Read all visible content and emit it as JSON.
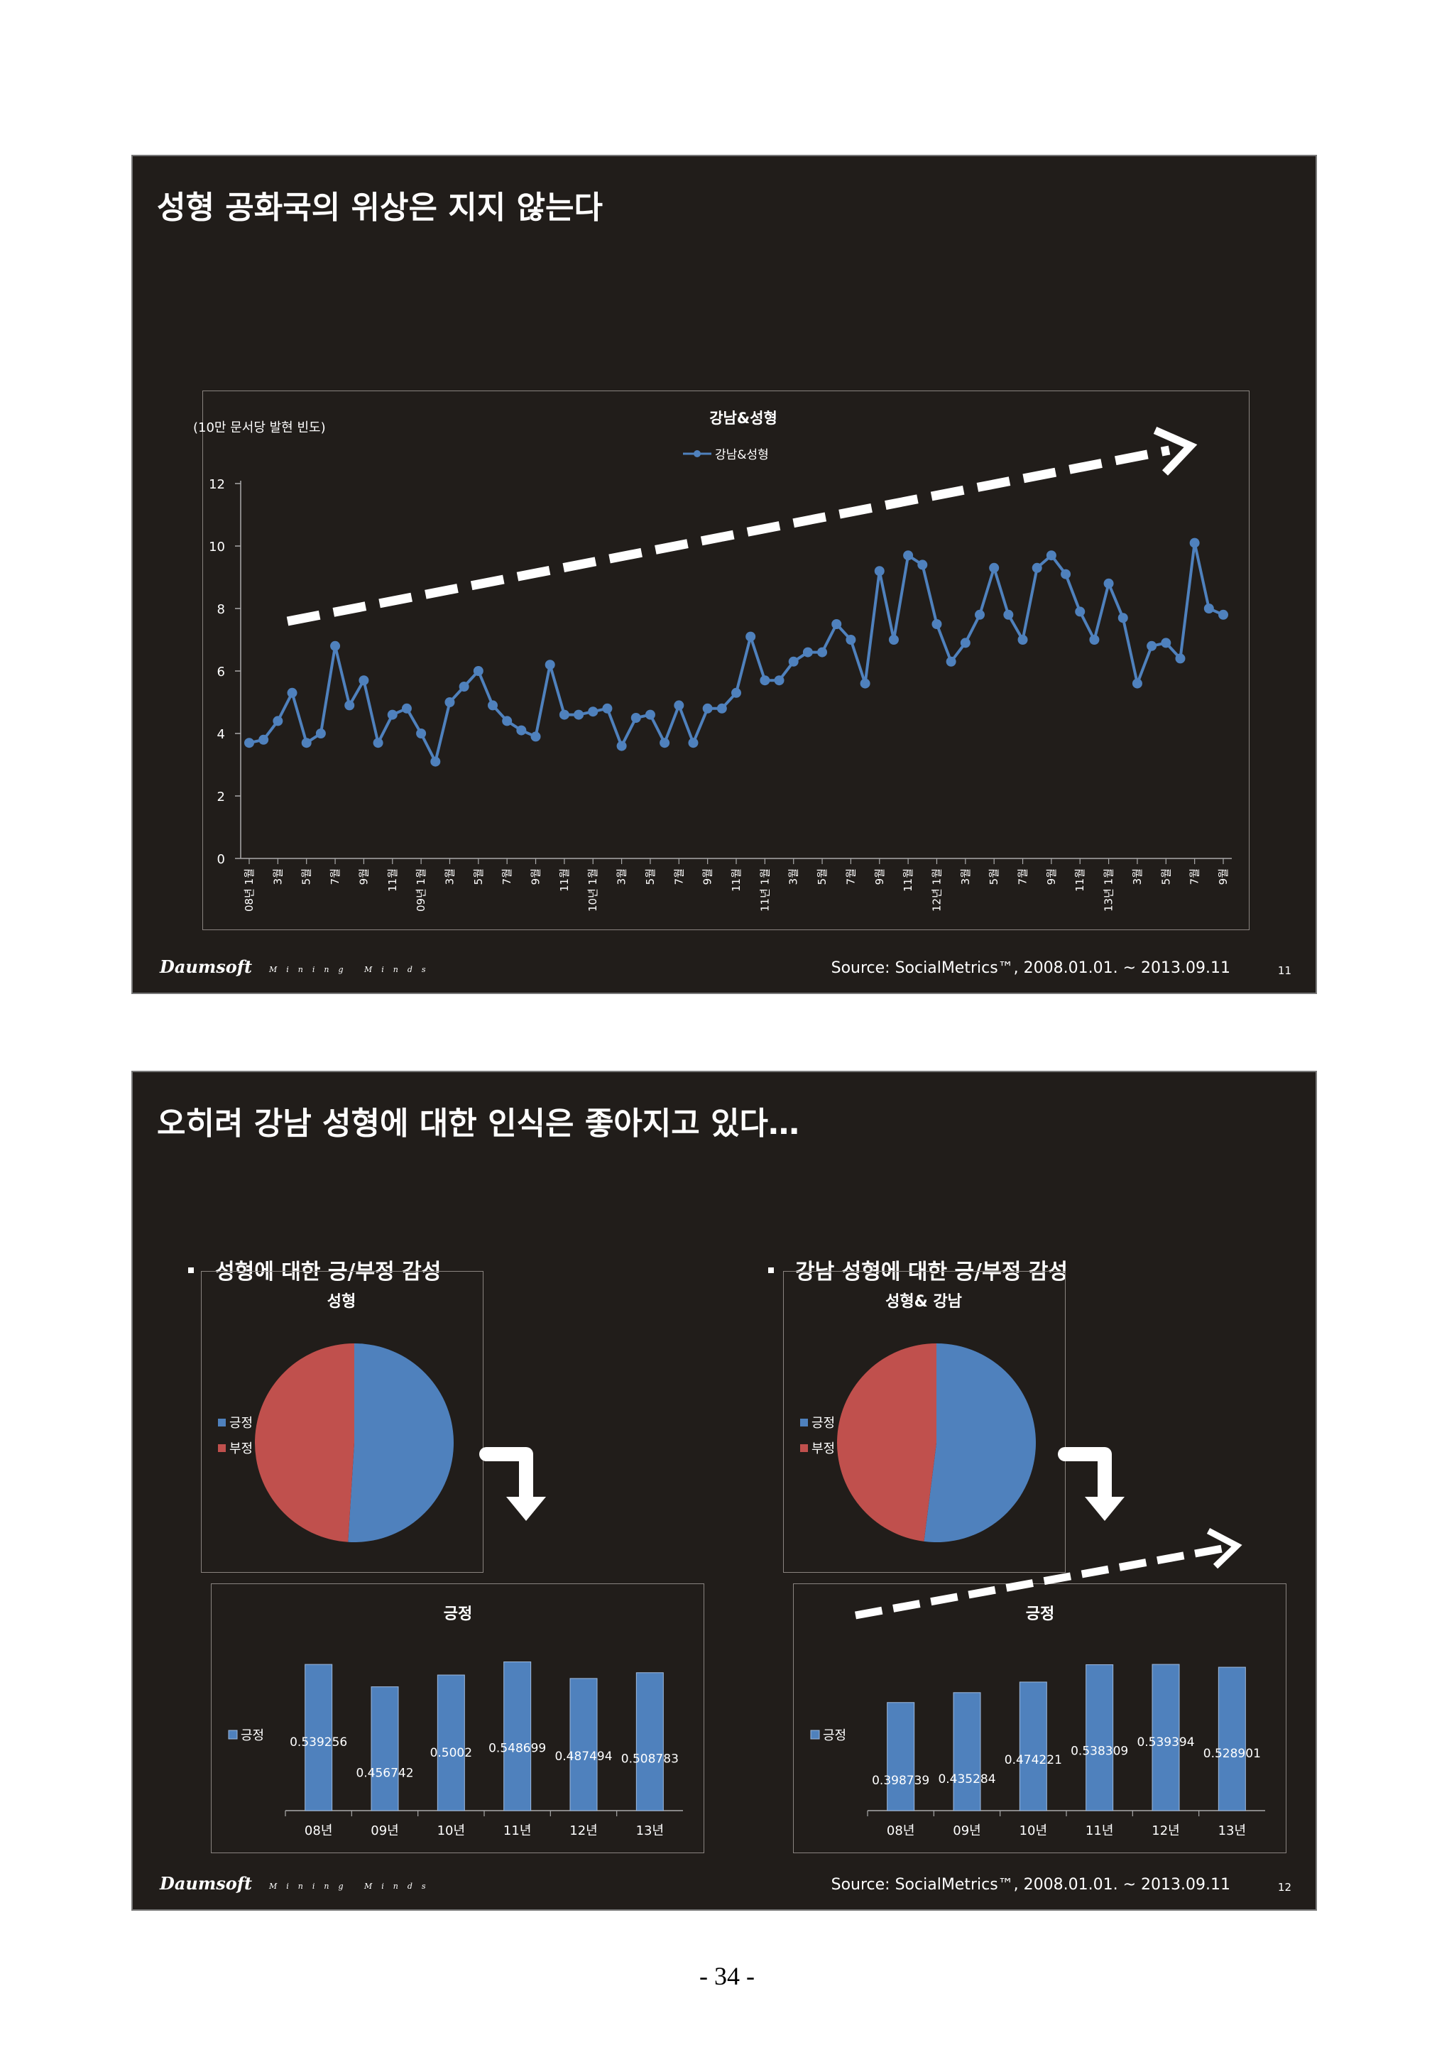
{
  "slides": [
    {
      "title": "성형 공화국의 위상은 지지 않는다",
      "logo": "Daumsoft",
      "tagline": "Mining Minds",
      "source": "Source: SocialMetrics™, 2008.01.01. ~ 2013.09.11",
      "page": "11"
    },
    {
      "title": "오히려 강남 성형에 대한 인식은 좋아지고 있다…",
      "logo": "Daumsoft",
      "tagline": "Mining Minds",
      "source": "Source: SocialMetrics™, 2008.01.01. ~ 2013.09.11",
      "page": "12",
      "bullet_left": "성형에 대한 긍/부정 감성",
      "bullet_right": "강남 성형에 대한 긍/부정 감성"
    }
  ],
  "colors": {
    "slide_bg": "#211d1a",
    "blue": "#4f81bd",
    "red": "#c0504d",
    "text": "#ffffff"
  },
  "page_number": "- 34 -",
  "chart_data": [
    {
      "type": "line",
      "title": "강남&성형",
      "ylabel": "(10만 문서당 발현 빈도)",
      "legend": "top-center",
      "ylim": [
        0,
        12
      ],
      "yticks": [
        0,
        2,
        4,
        6,
        8,
        10,
        12
      ],
      "x_tick_labels": [
        "08년 1월",
        "3월",
        "5월",
        "7월",
        "9월",
        "11월",
        "09년 1월",
        "3월",
        "5월",
        "7월",
        "9월",
        "11월",
        "10년 1월",
        "3월",
        "5월",
        "7월",
        "9월",
        "11월",
        "11년 1월",
        "3월",
        "5월",
        "7월",
        "9월",
        "11월",
        "12년 1월",
        "3월",
        "5월",
        "7월",
        "9월",
        "11월",
        "13년 1월",
        "3월",
        "5월",
        "7월",
        "9월"
      ],
      "series": [
        {
          "name": "강남&성형",
          "color": "#4f81bd",
          "values": [
            3.7,
            3.8,
            4.4,
            5.3,
            3.7,
            4.0,
            6.8,
            4.9,
            5.7,
            3.7,
            4.6,
            4.8,
            4.0,
            3.1,
            5.0,
            5.5,
            6.0,
            4.9,
            4.4,
            4.1,
            3.9,
            6.2,
            4.6,
            4.6,
            4.7,
            4.8,
            3.6,
            4.5,
            4.6,
            3.7,
            4.9,
            3.7,
            4.8,
            4.8,
            5.3,
            7.1,
            5.7,
            5.7,
            6.3,
            6.6,
            6.6,
            7.5,
            7.0,
            5.6,
            9.2,
            7.0,
            9.7,
            9.4,
            7.5,
            6.3,
            6.9,
            7.8,
            9.3,
            7.8,
            7.0,
            9.3,
            9.7,
            9.1,
            7.9,
            7.0,
            8.8,
            7.7,
            5.6,
            6.8,
            6.9,
            6.4,
            10.1,
            8.0,
            7.8
          ]
        }
      ],
      "annotation": "rising trend arrow"
    },
    {
      "type": "pie",
      "title": "성형",
      "legend": "left",
      "categories": [
        "긍정",
        "부정"
      ],
      "values": [
        0.51,
        0.49
      ],
      "colors": [
        "#4f81bd",
        "#c0504d"
      ]
    },
    {
      "type": "pie",
      "title": "성형& 강남",
      "legend": "left",
      "categories": [
        "긍정",
        "부정"
      ],
      "values": [
        0.52,
        0.48
      ],
      "colors": [
        "#4f81bd",
        "#c0504d"
      ]
    },
    {
      "type": "bar",
      "title": "긍정",
      "legend": "left",
      "series": [
        {
          "name": "긍정",
          "values": [
            0.539256,
            0.456742,
            0.5002,
            0.548699,
            0.487494,
            0.508783
          ]
        }
      ],
      "categories": [
        "08년",
        "09년",
        "10년",
        "11년",
        "12년",
        "13년"
      ],
      "value_labels": [
        "0.539256",
        "0.456742",
        "0.5002",
        "0.548699",
        "0.487494",
        "0.508783"
      ]
    },
    {
      "type": "bar",
      "title": "긍정",
      "legend": "left",
      "series": [
        {
          "name": "긍정",
          "values": [
            0.398739,
            0.435284,
            0.474221,
            0.538309,
            0.539394,
            0.528901
          ]
        }
      ],
      "categories": [
        "08년",
        "09년",
        "10년",
        "11년",
        "12년",
        "13년"
      ],
      "value_labels": [
        "0.398739",
        "0.435284",
        "0.474221",
        "0.538309",
        "0.539394",
        "0.528901"
      ]
    }
  ]
}
